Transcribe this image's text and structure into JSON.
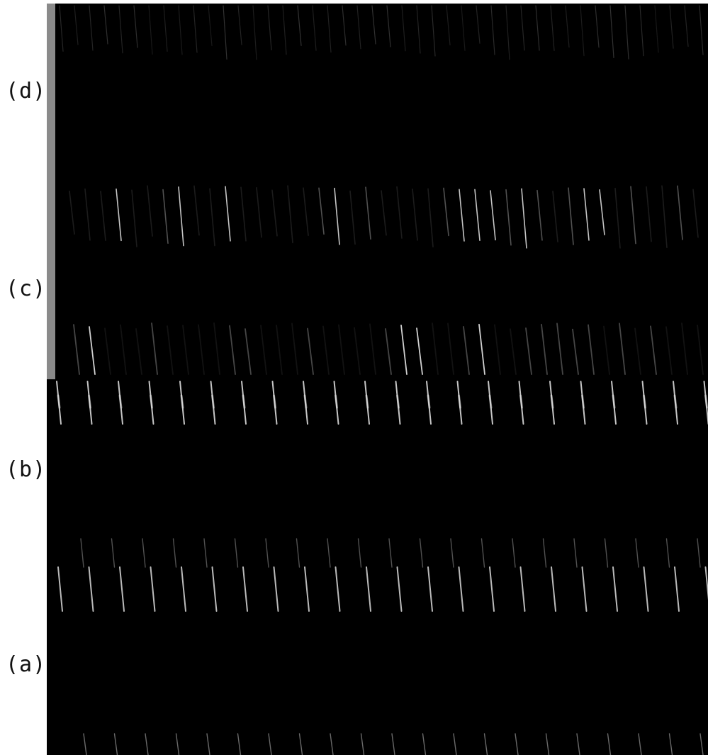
{
  "figure": {
    "panels": [
      {
        "id": "d",
        "label": "(d)",
        "pattern": "faint-uniform-streaks"
      },
      {
        "id": "c",
        "label": "(c)",
        "pattern": "irregular-bright-streaks"
      },
      {
        "id": "b",
        "label": "(b)",
        "pattern": "regular-bright-streaks"
      },
      {
        "id": "a",
        "label": "(a)",
        "pattern": "regular-streaks-with-lower-faint-row"
      }
    ]
  },
  "colors": {
    "page_background": "#ffffff",
    "image_background": "#000000",
    "streak": "#e8e8e8",
    "label_text": "#111111"
  }
}
